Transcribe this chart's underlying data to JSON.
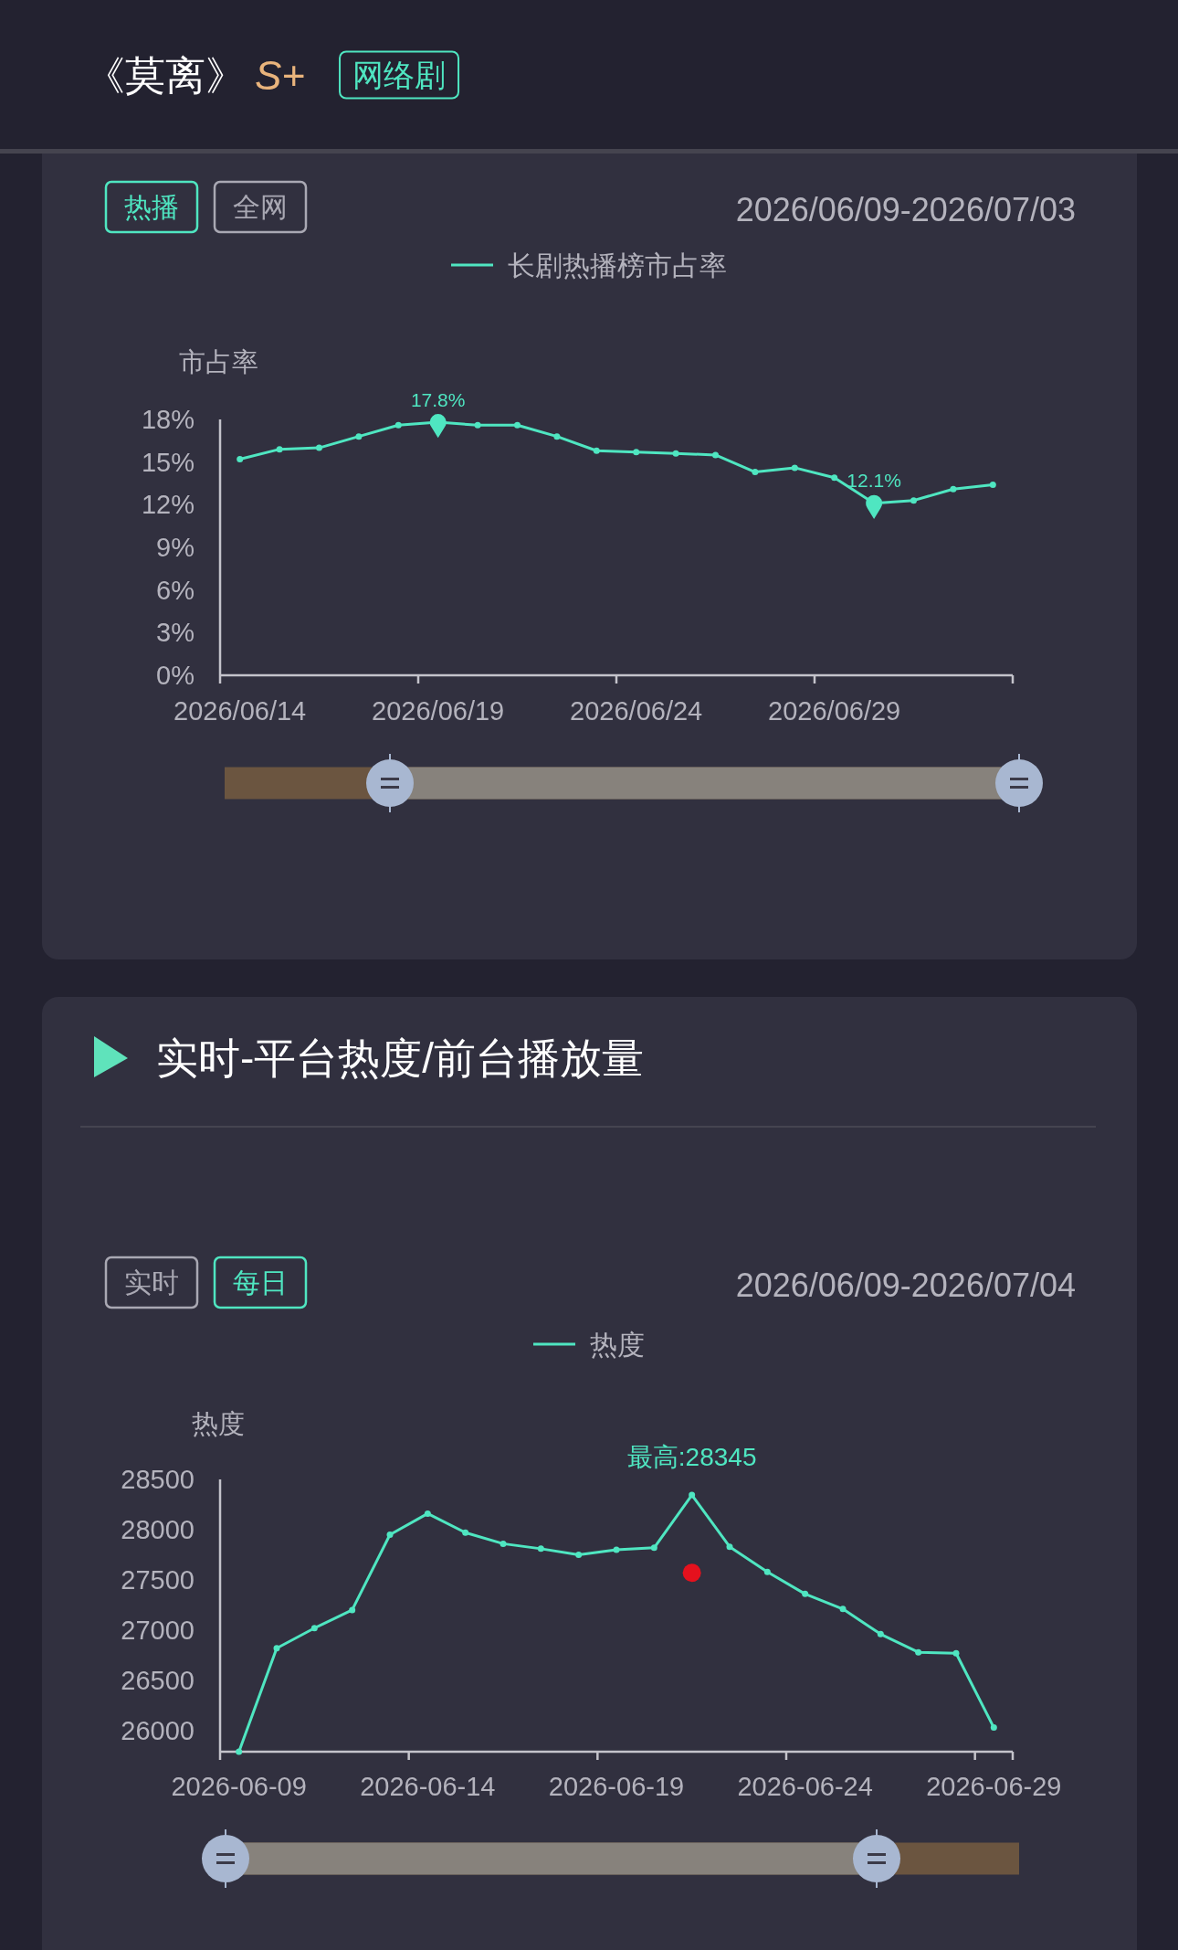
{
  "chart_data": [
    {
      "type": "line",
      "title": "《莫离》",
      "annotations": [
        "S+",
        "网络剧",
        "热播",
        "全网",
        "2026/06/09-2026/07/03"
      ],
      "ylabel": "市占率",
      "categories": [
        "2026/06/14",
        null,
        null,
        null,
        null,
        "2026/06/19",
        null,
        null,
        null,
        null,
        "2026/06/24",
        null,
        null,
        null,
        null,
        "2026/06/29",
        null,
        null,
        null,
        null
      ],
      "series": [
        {
          "name": "长剧热播榜市占率",
          "color": "#4fe6c1",
          "values": [
            15.2,
            15.9,
            16.0,
            16.8,
            17.6,
            17.8,
            17.6,
            17.6,
            16.8,
            15.8,
            15.7,
            15.6,
            15.5,
            14.3,
            14.6,
            13.9,
            12.1,
            12.3,
            13.1,
            13.4
          ]
        },
        {
          "type": "scatter",
          "color": "#4fe6c1",
          "values": [
            null,
            null,
            null,
            null,
            null,
            17.8,
            null,
            null,
            null,
            null,
            null,
            null,
            null,
            null,
            null,
            null,
            12.1,
            null,
            null,
            null
          ],
          "value_labels": [
            null,
            null,
            null,
            null,
            null,
            "17.8%",
            null,
            null,
            null,
            null,
            null,
            null,
            null,
            null,
            null,
            null,
            "12.1%",
            null,
            null,
            null
          ]
        }
      ],
      "ylim": [
        0,
        18
      ],
      "yticks": [
        {
          "value": 0,
          "label": "0%"
        },
        {
          "value": 3,
          "label": "3%"
        },
        {
          "value": 6,
          "label": "6%"
        },
        {
          "value": 9,
          "label": "9%"
        },
        {
          "value": 12,
          "label": "12%"
        },
        {
          "value": 15,
          "label": "15%"
        },
        {
          "value": 18,
          "label": "18%"
        }
      ],
      "legend": "top",
      "marker": "circle",
      "line_style": "solid"
    },
    {
      "type": "line",
      "title": "实时-平台热度/前台播放量",
      "annotations": [
        "实时",
        "每日",
        "2026/06/09-2026/07/04"
      ],
      "ylabel": "热度",
      "categories": [
        "2026-06-09",
        null,
        null,
        null,
        null,
        "2026-06-14",
        null,
        null,
        null,
        null,
        "2026-06-19",
        null,
        null,
        null,
        null,
        "2026-06-24",
        null,
        null,
        null,
        null,
        "2026-06-29"
      ],
      "series": [
        {
          "name": "热度",
          "color": "#4fe6c1",
          "values": [
            25790,
            26820,
            27020,
            27200,
            27950,
            28160,
            27970,
            27860,
            27810,
            27750,
            27800,
            27820,
            28345,
            27830,
            27580,
            27360,
            27210,
            26960,
            26780,
            26770,
            26030
          ],
          "value_labels": [
            null,
            null,
            null,
            null,
            null,
            null,
            null,
            null,
            null,
            null,
            null,
            null,
            "最高:28345",
            null,
            null,
            null,
            null,
            null,
            null,
            null,
            null
          ]
        },
        {
          "type": "scatter",
          "color": "#e5111d",
          "values": [
            null,
            null,
            null,
            null,
            null,
            null,
            null,
            null,
            null,
            null,
            null,
            null,
            27570,
            null,
            null,
            null,
            null,
            null,
            null,
            null,
            null
          ]
        }
      ],
      "ylim": [
        25790,
        28500
      ],
      "yticks": [
        26000,
        26500,
        27000,
        27500,
        28000,
        28500
      ],
      "legend": "top",
      "marker": "circle",
      "line_style": "solid"
    }
  ]
}
